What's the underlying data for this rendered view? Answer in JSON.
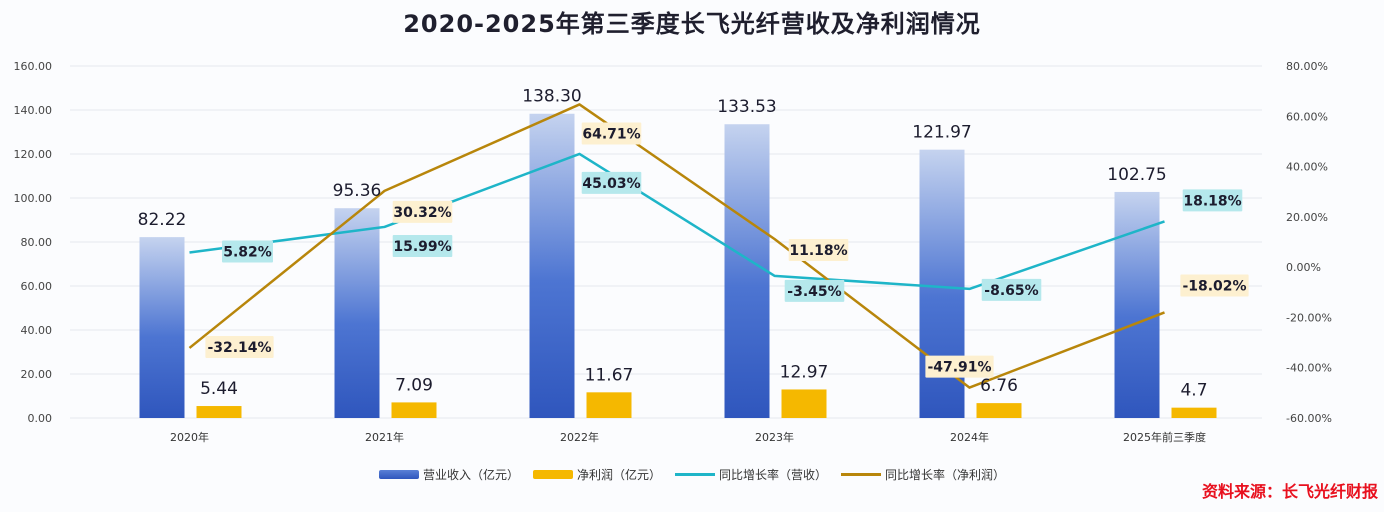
{
  "chart_data": {
    "type": "bar",
    "title": "2020-2025年第三季度长飞光纤营收及净利润情况",
    "categories": [
      "2020年",
      "2021年",
      "2022年",
      "2023年",
      "2024年",
      "2025年前三季度"
    ],
    "series": [
      {
        "name": "营业收入（亿元）",
        "type": "bar",
        "axis": "left",
        "color": "#3a63c8",
        "values": [
          82.22,
          95.36,
          138.3,
          133.53,
          121.97,
          102.75
        ],
        "labels": [
          "82.22",
          "95.36",
          "138.30",
          "133.53",
          "121.97",
          "102.75"
        ]
      },
      {
        "name": "净利润（亿元）",
        "type": "bar",
        "axis": "left",
        "color": "#f5b800",
        "values": [
          5.44,
          7.09,
          11.67,
          12.97,
          6.76,
          4.7
        ],
        "labels": [
          "5.44",
          "7.09",
          "11.67",
          "12.97",
          "6.76",
          "4.7"
        ]
      },
      {
        "name": "同比增长率（营收）",
        "type": "line",
        "axis": "right",
        "color": "#1eb5c8",
        "values": [
          5.82,
          15.99,
          45.03,
          -3.45,
          -8.65,
          18.18
        ],
        "labels": [
          "5.82%",
          "15.99%",
          "45.03%",
          "-3.45%",
          "-8.65%",
          "18.18%"
        ]
      },
      {
        "name": "同比增长率（净利润）",
        "type": "line",
        "axis": "right",
        "color": "#b8860b",
        "values": [
          -32.14,
          30.32,
          64.71,
          11.18,
          -47.91,
          -18.02
        ],
        "labels": [
          "-32.14%",
          "30.32%",
          "64.71%",
          "11.18%",
          "-47.91%",
          "-18.02%"
        ]
      }
    ],
    "ylim": [
      0,
      160
    ],
    "y2lim": [
      -60,
      80
    ],
    "yticks": [
      "0.00",
      "20.00",
      "40.00",
      "60.00",
      "80.00",
      "100.00",
      "120.00",
      "140.00",
      "160.00"
    ],
    "y2ticks": [
      "-60.00%",
      "-40.00%",
      "-20.00%",
      "0.00%",
      "20.00%",
      "40.00%",
      "60.00%",
      "80.00%"
    ],
    "grid": true,
    "legend": "bottom",
    "label_bg": {
      "revenue_growth": "#b5e8ec",
      "profit_growth": "#fdf0d0"
    }
  },
  "source_note": "资料来源：长飞光纤财报"
}
